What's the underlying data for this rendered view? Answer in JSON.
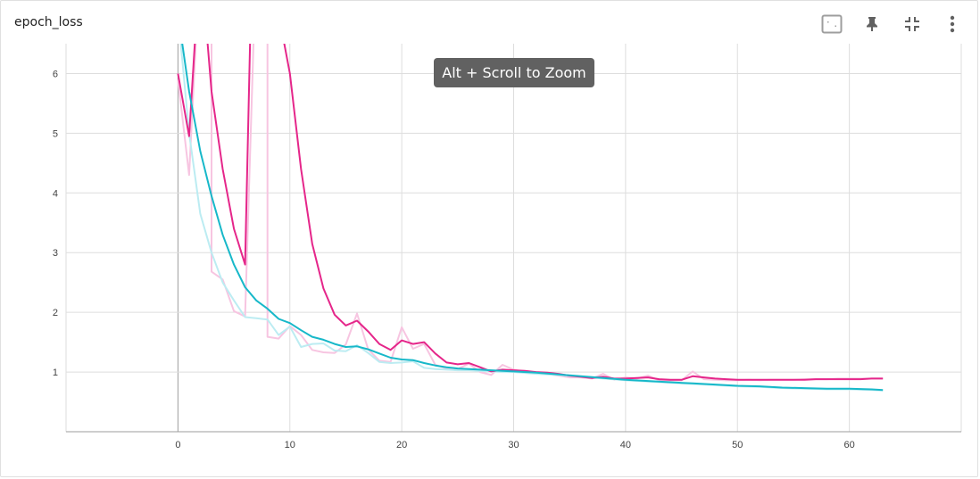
{
  "card": {
    "title": "epoch_loss"
  },
  "toolbar": {
    "buttons": [
      {
        "name": "toggle-y-axis-icon",
        "label": "Toggle Y axis log scale"
      },
      {
        "name": "pin-icon",
        "label": "Pin card"
      },
      {
        "name": "collapse-icon",
        "label": "Exit full size"
      },
      {
        "name": "more-vert-icon",
        "label": "More options"
      }
    ]
  },
  "tooltip": {
    "text": "Alt + Scroll to Zoom"
  },
  "chart_data": {
    "type": "line",
    "title": "epoch_loss",
    "xlabel": "",
    "ylabel": "",
    "xlim": [
      -10,
      70
    ],
    "ylim": [
      0,
      6.5
    ],
    "x_ticks": [
      0,
      10,
      20,
      30,
      40,
      50,
      60
    ],
    "y_ticks": [
      1,
      2,
      3,
      4,
      5,
      6
    ],
    "grid": true,
    "series": [
      {
        "color": "#e5268a",
        "raw_color": "#f7c5e1",
        "smoothed": {
          "x": [
            0,
            1,
            2,
            3,
            4,
            5,
            6,
            6,
            6.5,
            7,
            8,
            9,
            10,
            11,
            12,
            13,
            14,
            15,
            16,
            17,
            18,
            19,
            20,
            21,
            22,
            23,
            24,
            25,
            26,
            27,
            28,
            29,
            30,
            31,
            32,
            33,
            34,
            35,
            36,
            37,
            38,
            39,
            40,
            41,
            42,
            43,
            44,
            45,
            46,
            47,
            48,
            49,
            50,
            51,
            52,
            53,
            54,
            55,
            56,
            57,
            58,
            59,
            60,
            61,
            62,
            63
          ],
          "y": [
            6.0,
            4.95,
            8.0,
            5.7,
            4.4,
            3.4,
            2.8,
            2.8,
            7.0,
            7.0,
            7.0,
            7.0,
            6.0,
            4.4,
            3.15,
            2.4,
            1.96,
            1.78,
            1.86,
            1.68,
            1.47,
            1.37,
            1.53,
            1.47,
            1.5,
            1.31,
            1.16,
            1.13,
            1.15,
            1.08,
            1.01,
            1.04,
            1.03,
            1.02,
            1.0,
            0.99,
            0.97,
            0.94,
            0.92,
            0.9,
            0.92,
            0.89,
            0.89,
            0.9,
            0.91,
            0.88,
            0.87,
            0.87,
            0.93,
            0.91,
            0.89,
            0.88,
            0.87,
            0.87,
            0.87,
            0.87,
            0.87,
            0.87,
            0.87,
            0.88,
            0.88,
            0.88,
            0.88,
            0.88,
            0.89,
            0.89
          ]
        },
        "raw": {
          "x": [
            0,
            1,
            2,
            3,
            3,
            4,
            5,
            6,
            6,
            7,
            8,
            8,
            9,
            10,
            11,
            12,
            13,
            14,
            15,
            16,
            17,
            18,
            19,
            20,
            21,
            22,
            23,
            24,
            25,
            26,
            27,
            28,
            29,
            30,
            31,
            32,
            33,
            34,
            35,
            36,
            37,
            38,
            39,
            40,
            41,
            42,
            43,
            44,
            45,
            46,
            47,
            48,
            49,
            50,
            51,
            52,
            53,
            54,
            55,
            56,
            57,
            58,
            59,
            60,
            61,
            62,
            63
          ],
          "y": [
            5.9,
            4.3,
            8.0,
            8.0,
            2.68,
            2.55,
            2.02,
            1.93,
            1.93,
            8.0,
            8.0,
            1.59,
            1.56,
            1.77,
            1.62,
            1.37,
            1.33,
            1.32,
            1.46,
            1.98,
            1.38,
            1.19,
            1.17,
            1.75,
            1.39,
            1.47,
            1.12,
            1.06,
            1.05,
            1.14,
            1.0,
            0.95,
            1.12,
            1.04,
            1.0,
            1.0,
            0.97,
            0.94,
            0.91,
            0.91,
            0.89,
            0.97,
            0.87,
            0.91,
            0.89,
            0.94,
            0.86,
            0.86,
            0.86,
            1.01,
            0.88,
            0.87,
            0.86,
            0.86,
            0.87,
            0.86,
            0.87,
            0.87,
            0.87,
            0.88,
            0.88,
            0.88,
            0.89,
            0.89,
            0.89,
            0.89,
            0.89
          ]
        }
      },
      {
        "color": "#17b8c9",
        "raw_color": "#bcecf2",
        "smoothed": {
          "x": [
            0,
            1,
            2,
            3,
            4,
            5,
            6,
            7,
            8,
            9,
            10,
            11,
            12,
            13,
            14,
            15,
            16,
            17,
            18,
            19,
            20,
            21,
            22,
            23,
            24,
            25,
            26,
            27,
            28,
            29,
            30,
            32,
            34,
            36,
            38,
            40,
            42,
            44,
            46,
            48,
            50,
            52,
            54,
            56,
            58,
            60,
            62,
            63
          ],
          "y": [
            7.0,
            5.7,
            4.7,
            3.95,
            3.3,
            2.8,
            2.42,
            2.2,
            2.06,
            1.89,
            1.82,
            1.7,
            1.59,
            1.54,
            1.47,
            1.42,
            1.43,
            1.38,
            1.31,
            1.24,
            1.21,
            1.2,
            1.15,
            1.11,
            1.08,
            1.06,
            1.05,
            1.04,
            1.03,
            1.02,
            1.01,
            0.99,
            0.96,
            0.93,
            0.9,
            0.87,
            0.85,
            0.83,
            0.81,
            0.79,
            0.77,
            0.76,
            0.74,
            0.73,
            0.72,
            0.72,
            0.71,
            0.7
          ]
        },
        "raw": {
          "x": [
            0,
            1,
            2,
            3,
            4,
            5,
            6,
            7,
            8,
            9,
            10,
            11,
            12,
            13,
            14,
            15,
            16,
            17,
            18,
            19,
            20,
            21,
            22,
            23,
            24,
            25,
            26,
            27,
            28,
            29,
            30,
            32,
            34,
            36,
            38,
            40,
            42,
            44,
            46,
            48,
            50,
            52,
            54,
            56,
            58,
            60,
            62,
            63
          ],
          "y": [
            7.0,
            5.0,
            3.65,
            3.0,
            2.5,
            2.2,
            1.92,
            1.9,
            1.88,
            1.62,
            1.76,
            1.42,
            1.47,
            1.48,
            1.36,
            1.35,
            1.45,
            1.32,
            1.17,
            1.15,
            1.16,
            1.18,
            1.07,
            1.05,
            1.04,
            1.03,
            1.03,
            1.02,
            1.01,
            1.0,
            1.0,
            0.97,
            0.95,
            0.92,
            0.89,
            0.86,
            0.84,
            0.82,
            0.8,
            0.78,
            0.76,
            0.75,
            0.73,
            0.72,
            0.71,
            0.71,
            0.7,
            0.69
          ]
        }
      }
    ]
  }
}
